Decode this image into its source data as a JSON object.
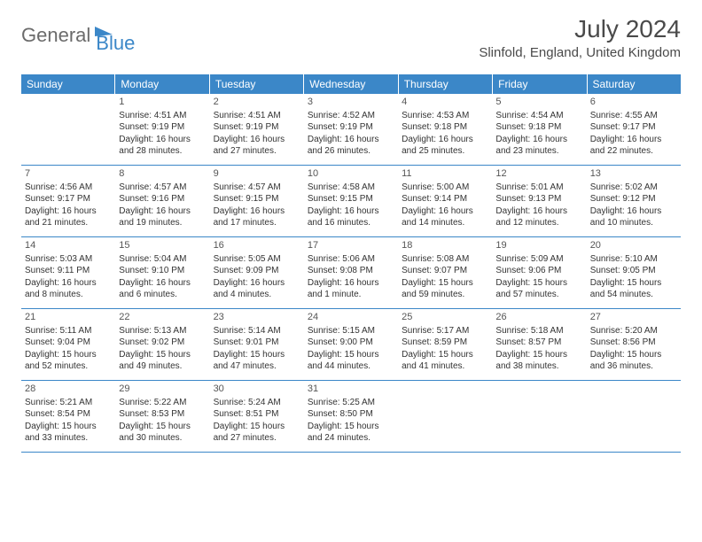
{
  "brand": {
    "text1": "General",
    "text2": "Blue"
  },
  "title": "July 2024",
  "location": "Slinfold, England, United Kingdom",
  "colors": {
    "header_bg": "#3b87c8",
    "header_text": "#ffffff",
    "row_border": "#3b87c8",
    "body_text": "#333333",
    "title_text": "#4a4a4a",
    "logo_gray": "#6b6b6b",
    "logo_blue": "#3b87c8",
    "background": "#ffffff"
  },
  "fonts": {
    "title_size": 28,
    "location_size": 15,
    "header_size": 12,
    "cell_size": 10
  },
  "day_names": [
    "Sunday",
    "Monday",
    "Tuesday",
    "Wednesday",
    "Thursday",
    "Friday",
    "Saturday"
  ],
  "weeks": [
    [
      null,
      {
        "n": "1",
        "sunrise": "Sunrise: 4:51 AM",
        "sunset": "Sunset: 9:19 PM",
        "daylight": "Daylight: 16 hours and 28 minutes."
      },
      {
        "n": "2",
        "sunrise": "Sunrise: 4:51 AM",
        "sunset": "Sunset: 9:19 PM",
        "daylight": "Daylight: 16 hours and 27 minutes."
      },
      {
        "n": "3",
        "sunrise": "Sunrise: 4:52 AM",
        "sunset": "Sunset: 9:19 PM",
        "daylight": "Daylight: 16 hours and 26 minutes."
      },
      {
        "n": "4",
        "sunrise": "Sunrise: 4:53 AM",
        "sunset": "Sunset: 9:18 PM",
        "daylight": "Daylight: 16 hours and 25 minutes."
      },
      {
        "n": "5",
        "sunrise": "Sunrise: 4:54 AM",
        "sunset": "Sunset: 9:18 PM",
        "daylight": "Daylight: 16 hours and 23 minutes."
      },
      {
        "n": "6",
        "sunrise": "Sunrise: 4:55 AM",
        "sunset": "Sunset: 9:17 PM",
        "daylight": "Daylight: 16 hours and 22 minutes."
      }
    ],
    [
      {
        "n": "7",
        "sunrise": "Sunrise: 4:56 AM",
        "sunset": "Sunset: 9:17 PM",
        "daylight": "Daylight: 16 hours and 21 minutes."
      },
      {
        "n": "8",
        "sunrise": "Sunrise: 4:57 AM",
        "sunset": "Sunset: 9:16 PM",
        "daylight": "Daylight: 16 hours and 19 minutes."
      },
      {
        "n": "9",
        "sunrise": "Sunrise: 4:57 AM",
        "sunset": "Sunset: 9:15 PM",
        "daylight": "Daylight: 16 hours and 17 minutes."
      },
      {
        "n": "10",
        "sunrise": "Sunrise: 4:58 AM",
        "sunset": "Sunset: 9:15 PM",
        "daylight": "Daylight: 16 hours and 16 minutes."
      },
      {
        "n": "11",
        "sunrise": "Sunrise: 5:00 AM",
        "sunset": "Sunset: 9:14 PM",
        "daylight": "Daylight: 16 hours and 14 minutes."
      },
      {
        "n": "12",
        "sunrise": "Sunrise: 5:01 AM",
        "sunset": "Sunset: 9:13 PM",
        "daylight": "Daylight: 16 hours and 12 minutes."
      },
      {
        "n": "13",
        "sunrise": "Sunrise: 5:02 AM",
        "sunset": "Sunset: 9:12 PM",
        "daylight": "Daylight: 16 hours and 10 minutes."
      }
    ],
    [
      {
        "n": "14",
        "sunrise": "Sunrise: 5:03 AM",
        "sunset": "Sunset: 9:11 PM",
        "daylight": "Daylight: 16 hours and 8 minutes."
      },
      {
        "n": "15",
        "sunrise": "Sunrise: 5:04 AM",
        "sunset": "Sunset: 9:10 PM",
        "daylight": "Daylight: 16 hours and 6 minutes."
      },
      {
        "n": "16",
        "sunrise": "Sunrise: 5:05 AM",
        "sunset": "Sunset: 9:09 PM",
        "daylight": "Daylight: 16 hours and 4 minutes."
      },
      {
        "n": "17",
        "sunrise": "Sunrise: 5:06 AM",
        "sunset": "Sunset: 9:08 PM",
        "daylight": "Daylight: 16 hours and 1 minute."
      },
      {
        "n": "18",
        "sunrise": "Sunrise: 5:08 AM",
        "sunset": "Sunset: 9:07 PM",
        "daylight": "Daylight: 15 hours and 59 minutes."
      },
      {
        "n": "19",
        "sunrise": "Sunrise: 5:09 AM",
        "sunset": "Sunset: 9:06 PM",
        "daylight": "Daylight: 15 hours and 57 minutes."
      },
      {
        "n": "20",
        "sunrise": "Sunrise: 5:10 AM",
        "sunset": "Sunset: 9:05 PM",
        "daylight": "Daylight: 15 hours and 54 minutes."
      }
    ],
    [
      {
        "n": "21",
        "sunrise": "Sunrise: 5:11 AM",
        "sunset": "Sunset: 9:04 PM",
        "daylight": "Daylight: 15 hours and 52 minutes."
      },
      {
        "n": "22",
        "sunrise": "Sunrise: 5:13 AM",
        "sunset": "Sunset: 9:02 PM",
        "daylight": "Daylight: 15 hours and 49 minutes."
      },
      {
        "n": "23",
        "sunrise": "Sunrise: 5:14 AM",
        "sunset": "Sunset: 9:01 PM",
        "daylight": "Daylight: 15 hours and 47 minutes."
      },
      {
        "n": "24",
        "sunrise": "Sunrise: 5:15 AM",
        "sunset": "Sunset: 9:00 PM",
        "daylight": "Daylight: 15 hours and 44 minutes."
      },
      {
        "n": "25",
        "sunrise": "Sunrise: 5:17 AM",
        "sunset": "Sunset: 8:59 PM",
        "daylight": "Daylight: 15 hours and 41 minutes."
      },
      {
        "n": "26",
        "sunrise": "Sunrise: 5:18 AM",
        "sunset": "Sunset: 8:57 PM",
        "daylight": "Daylight: 15 hours and 38 minutes."
      },
      {
        "n": "27",
        "sunrise": "Sunrise: 5:20 AM",
        "sunset": "Sunset: 8:56 PM",
        "daylight": "Daylight: 15 hours and 36 minutes."
      }
    ],
    [
      {
        "n": "28",
        "sunrise": "Sunrise: 5:21 AM",
        "sunset": "Sunset: 8:54 PM",
        "daylight": "Daylight: 15 hours and 33 minutes."
      },
      {
        "n": "29",
        "sunrise": "Sunrise: 5:22 AM",
        "sunset": "Sunset: 8:53 PM",
        "daylight": "Daylight: 15 hours and 30 minutes."
      },
      {
        "n": "30",
        "sunrise": "Sunrise: 5:24 AM",
        "sunset": "Sunset: 8:51 PM",
        "daylight": "Daylight: 15 hours and 27 minutes."
      },
      {
        "n": "31",
        "sunrise": "Sunrise: 5:25 AM",
        "sunset": "Sunset: 8:50 PM",
        "daylight": "Daylight: 15 hours and 24 minutes."
      },
      null,
      null,
      null
    ]
  ]
}
